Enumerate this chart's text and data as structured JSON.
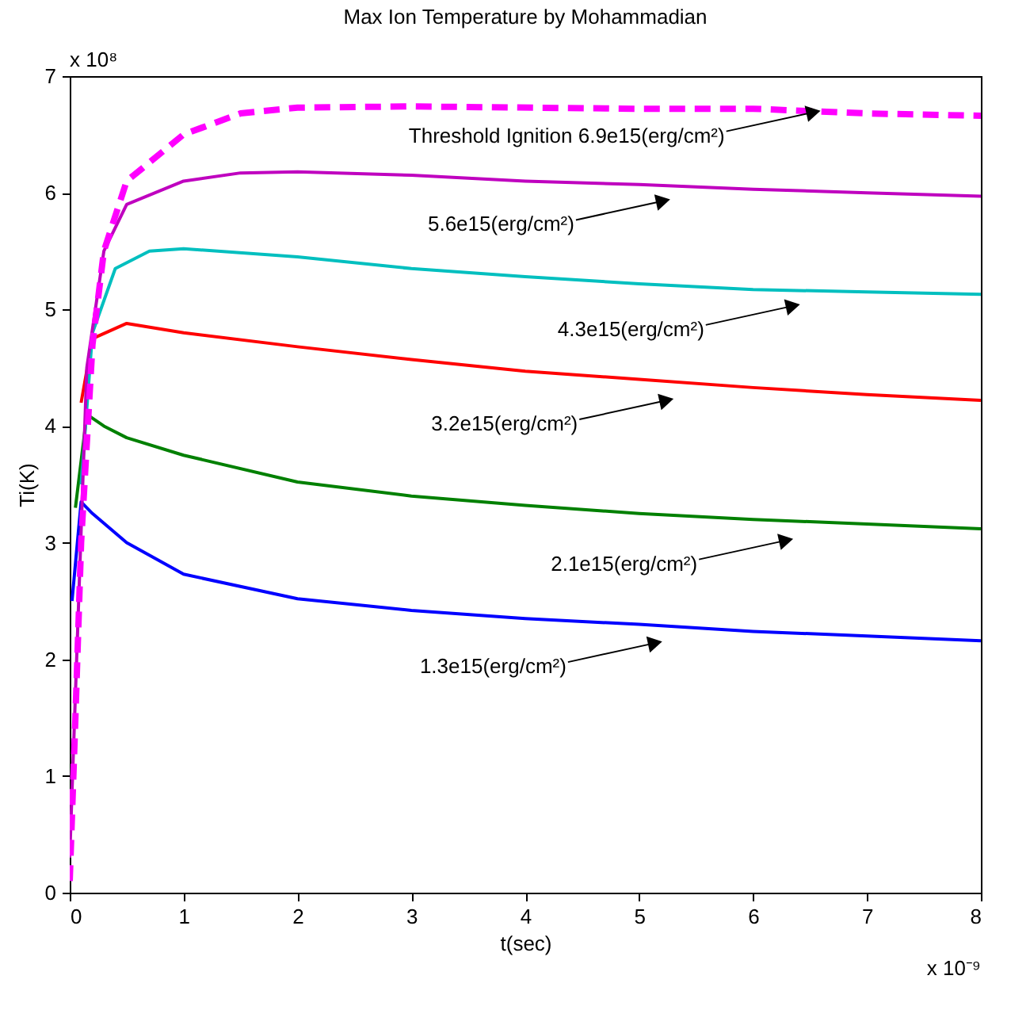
{
  "chart_data": {
    "type": "line",
    "title": "Max Ion Temperature by Mohammadian",
    "xlabel": "t(sec)",
    "ylabel": "Ti(K)",
    "xlim": [
      0,
      8
    ],
    "xticks": [
      0,
      1,
      2,
      3,
      4,
      5,
      6,
      7,
      8
    ],
    "ylim": [
      0,
      7
    ],
    "yticks": [
      0,
      1,
      2,
      3,
      4,
      5,
      6,
      7
    ],
    "grid": false,
    "series": [
      {
        "color": "#0000ff",
        "line_style": "solid",
        "x": [
          0.02,
          0.1,
          0.2,
          0.5,
          1,
          2,
          3,
          4,
          5,
          6,
          7,
          8
        ],
        "values": [
          2.5,
          3.35,
          3.25,
          3.0,
          2.73,
          2.52,
          2.42,
          2.35,
          2.3,
          2.24,
          2.2,
          2.16
        ]
      },
      {
        "color": "#008000",
        "line_style": "solid",
        "x": [
          0.05,
          0.15,
          0.3,
          0.5,
          1,
          2,
          3,
          4,
          5,
          6,
          7,
          8
        ],
        "values": [
          3.3,
          4.1,
          4.0,
          3.9,
          3.75,
          3.52,
          3.4,
          3.32,
          3.25,
          3.2,
          3.16,
          3.12
        ]
      },
      {
        "color": "#ff0000",
        "line_style": "solid",
        "x": [
          0.1,
          0.2,
          0.5,
          1,
          2,
          3,
          4,
          5,
          6,
          7,
          8
        ],
        "values": [
          4.2,
          4.75,
          4.88,
          4.8,
          4.68,
          4.57,
          4.47,
          4.4,
          4.33,
          4.27,
          4.22
        ]
      },
      {
        "color": "#00bfbf",
        "line_style": "solid",
        "x": [
          0.1,
          0.2,
          0.4,
          0.7,
          1,
          2,
          3,
          4,
          5,
          6,
          7,
          8
        ],
        "values": [
          3.5,
          4.8,
          5.35,
          5.5,
          5.52,
          5.45,
          5.35,
          5.28,
          5.22,
          5.17,
          5.15,
          5.13
        ]
      },
      {
        "color": "#bf00bf",
        "line_style": "solid",
        "x": [
          0,
          0.15,
          0.3,
          0.5,
          1,
          1.5,
          2,
          3,
          4,
          5,
          6,
          7,
          8
        ],
        "values": [
          0.3,
          4.5,
          5.5,
          5.9,
          6.1,
          6.17,
          6.18,
          6.15,
          6.1,
          6.07,
          6.03,
          6.0,
          5.97
        ]
      },
      {
        "color": "#ff00ff",
        "line_style": "dashed",
        "x": [
          0,
          0.05,
          0.1,
          0.2,
          0.3,
          0.5,
          1,
          1.5,
          2,
          3,
          5,
          6,
          7,
          8
        ],
        "values": [
          0.1,
          1.5,
          3.0,
          4.7,
          5.5,
          6.1,
          6.5,
          6.68,
          6.73,
          6.74,
          6.72,
          6.72,
          6.68,
          6.66
        ]
      }
    ],
    "annotations": [
      {
        "text": "Threshold Ignition 6.9e15(erg/cm²)",
        "x": 6.53,
        "y": 6.69
      },
      {
        "text": "5.6e15(erg/cm²)",
        "x": 5.21,
        "y": 5.93
      },
      {
        "text": "4.3e15(erg/cm²)",
        "x": 6.35,
        "y": 5.03
      },
      {
        "text": "3.2e15(erg/cm²)",
        "x": 5.24,
        "y": 4.22
      },
      {
        "text": "2.1e15(erg/cm²)",
        "x": 6.29,
        "y": 3.02
      },
      {
        "text": "1.3e15(erg/cm²)",
        "x": 5.14,
        "y": 2.14
      },
      "x 10⁸",
      "x 10⁻⁹"
    ]
  }
}
